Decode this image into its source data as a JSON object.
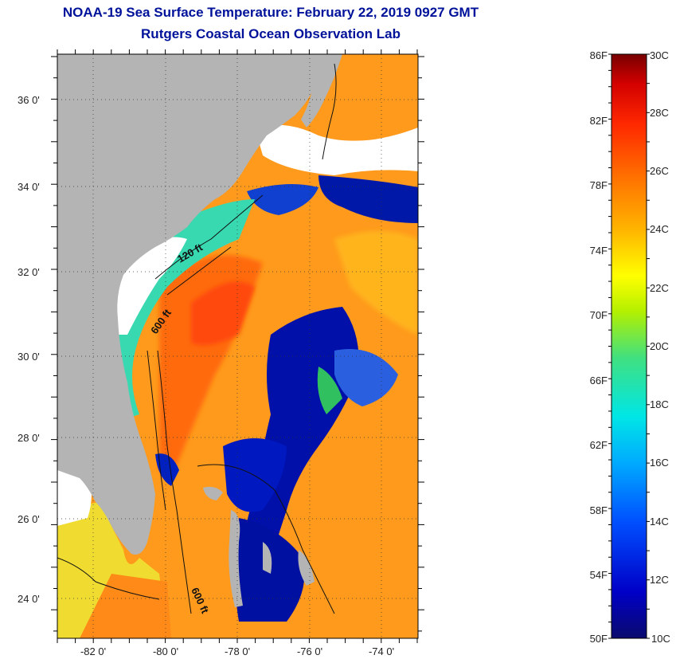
{
  "header": {
    "title": "NOAA-19 Sea Surface Temperature:  February 22, 2019 0927 GMT",
    "subtitle": "Rutgers Coastal Ocean Observation Lab"
  },
  "map": {
    "lat_range": [
      23,
      37
    ],
    "lon_range": [
      -83,
      -73
    ],
    "lat_labels": [
      "36 0'",
      "34 0'",
      "32 0'",
      "30 0'",
      "28 0'",
      "26 0'",
      "24 0'"
    ],
    "lon_labels": [
      "-82 0'",
      "-80 0'",
      "-78 0'",
      "-76 0'",
      "-74 0'"
    ],
    "isobath_labels": [
      "120 ft",
      "600 ft",
      "600 ft"
    ],
    "land_color": "#b4b4b4",
    "cloud_color": "#ffffff"
  },
  "colorbar": {
    "fahrenheit_labels": [
      "86F",
      "82F",
      "78F",
      "74F",
      "70F",
      "66F",
      "62F",
      "58F",
      "54F",
      "50F"
    ],
    "celsius_labels": [
      "30C",
      "28C",
      "26C",
      "24C",
      "22C",
      "20C",
      "18C",
      "16C",
      "14C",
      "12C",
      "10C"
    ],
    "min_c": 10,
    "max_c": 30
  }
}
